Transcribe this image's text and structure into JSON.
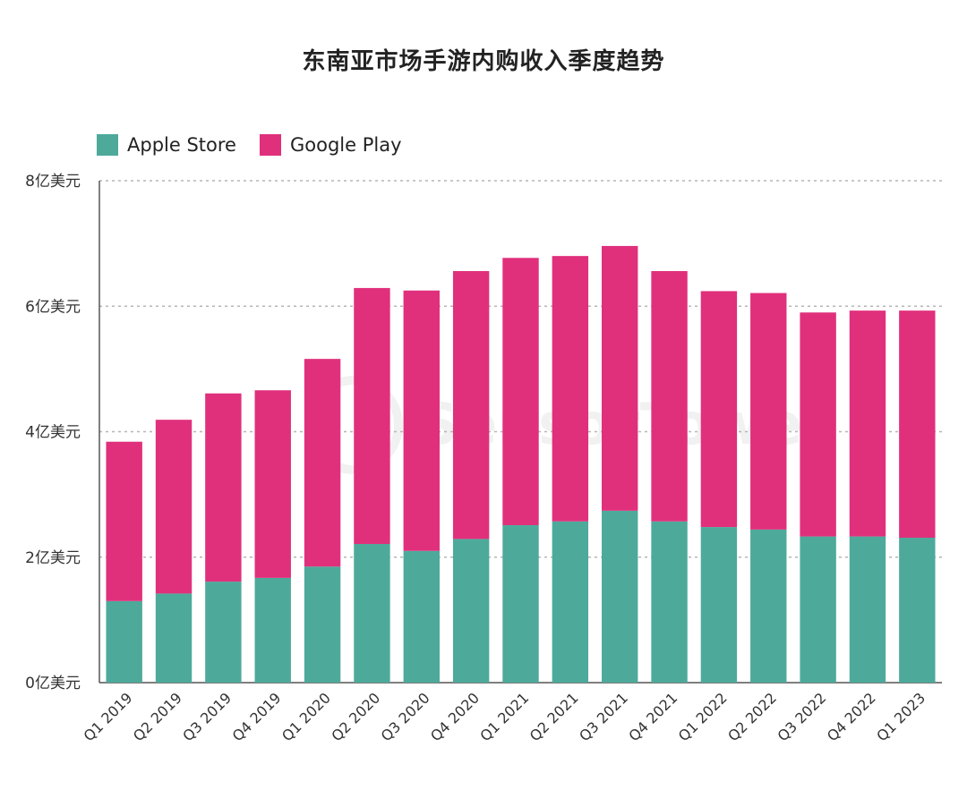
{
  "chart_data": {
    "type": "bar",
    "stacked": true,
    "title": "东南亚市场手游内购收入季度趋势",
    "categories": [
      "Q1 2019",
      "Q2 2019",
      "Q3 2019",
      "Q4 2019",
      "Q1 2020",
      "Q2 2020",
      "Q3 2020",
      "Q4 2020",
      "Q1 2021",
      "Q2 2021",
      "Q3 2021",
      "Q4 2021",
      "Q1 2022",
      "Q2 2022",
      "Q3 2022",
      "Q4 2022",
      "Q1 2023"
    ],
    "series": [
      {
        "name": "Apple Store",
        "color": "#4DAA9B",
        "values": [
          1.3,
          1.42,
          1.61,
          1.67,
          1.85,
          2.21,
          2.1,
          2.29,
          2.51,
          2.57,
          2.74,
          2.57,
          2.48,
          2.44,
          2.33,
          2.33,
          2.31
        ]
      },
      {
        "name": "Google Play",
        "color": "#E0307C",
        "values": [
          2.54,
          2.77,
          3.0,
          2.99,
          3.31,
          4.08,
          4.15,
          4.27,
          4.26,
          4.23,
          4.22,
          3.99,
          3.76,
          3.77,
          3.57,
          3.6,
          3.62
        ]
      }
    ],
    "ylim": [
      0,
      8
    ],
    "yticks": [
      0,
      2,
      4,
      6,
      8
    ],
    "ytick_labels": [
      "0亿美元",
      "2亿美元",
      "4亿美元",
      "6亿美元",
      "8亿美元"
    ],
    "xlabel": "",
    "ylabel": "",
    "grid": true,
    "legend_position": "top-left"
  },
  "watermark": "SensorTower"
}
